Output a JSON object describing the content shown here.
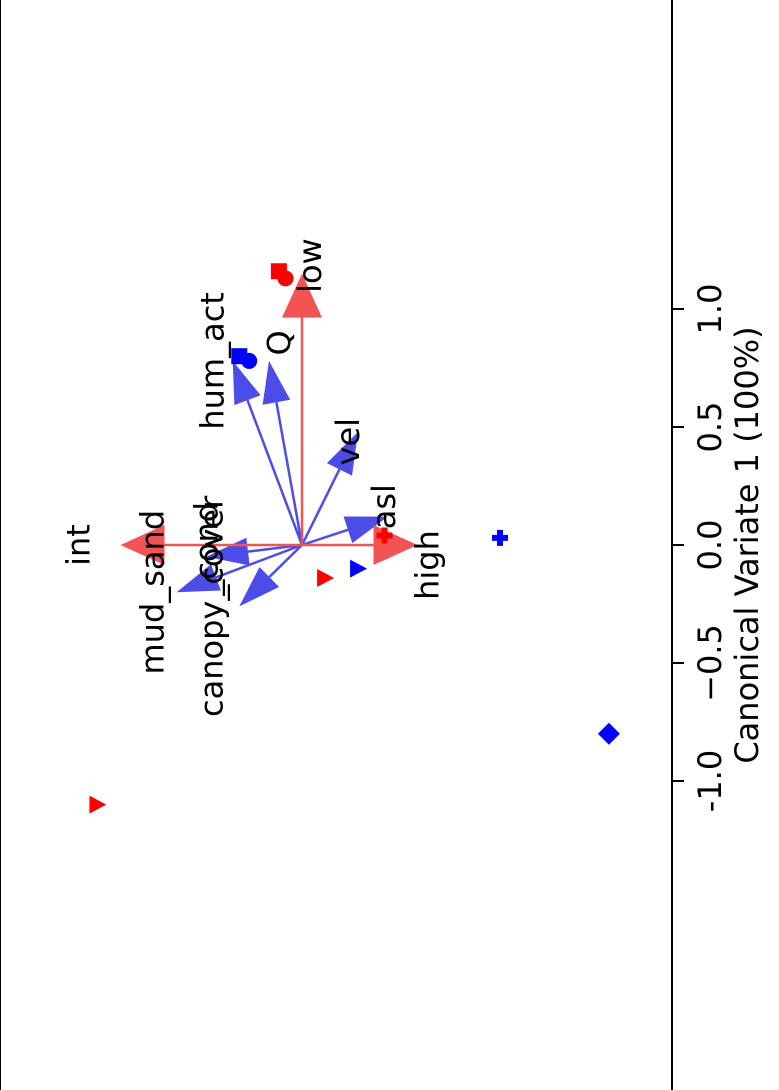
{
  "chart_data": {
    "type": "scatter",
    "title": "",
    "xlabel": "Canonical Variate 1 (100%)",
    "xlim": [
      -1.05,
      1.25
    ],
    "orientation": "rotated-90",
    "x_ticks": [
      {
        "value": -1.0,
        "label": "-1.0"
      },
      {
        "value": -0.5,
        "label": "−0.5"
      },
      {
        "value": 0.0,
        "label": "0.0"
      },
      {
        "value": 0.5,
        "label": "0.5"
      },
      {
        "value": 1.0,
        "label": "1.0"
      }
    ],
    "colors": {
      "red": "#ff0000",
      "blue": "#0000ff",
      "red_arrow": "#f25454",
      "blue_arrow": "#4c4ce8"
    },
    "class_arrows": [
      {
        "name": "low",
        "label": "low",
        "x": 1.15,
        "y": 0.0
      },
      {
        "name": "int",
        "label": "int",
        "x": 0.0,
        "y": 0.55
      },
      {
        "name": "high",
        "label": "high",
        "x": 0.0,
        "y": -0.35
      }
    ],
    "variable_arrows": [
      {
        "name": "hum_act",
        "label": "hum_act",
        "x": 0.78,
        "y": 0.21
      },
      {
        "name": "Q",
        "label": "Q",
        "x": 0.78,
        "y": 0.1
      },
      {
        "name": "vel",
        "label": "vel",
        "x": 0.48,
        "y": -0.17
      },
      {
        "name": "asl",
        "label": "asl",
        "x": 0.12,
        "y": -0.26
      },
      {
        "name": "canopy_cover",
        "label": "canopy_cover",
        "x": -0.26,
        "y": 0.19
      },
      {
        "name": "cond",
        "label": "_cond",
        "x": -0.05,
        "y": 0.29
      },
      {
        "name": "mud_sand",
        "label": "mud_sand",
        "x": -0.2,
        "y": 0.38
      }
    ],
    "points": [
      {
        "x": 1.16,
        "y": 0.07,
        "color": "red",
        "marker": "square"
      },
      {
        "x": 1.13,
        "y": 0.05,
        "color": "red",
        "marker": "circle"
      },
      {
        "x": 0.8,
        "y": 0.19,
        "color": "blue",
        "marker": "square"
      },
      {
        "x": 0.78,
        "y": 0.16,
        "color": "blue",
        "marker": "circle"
      },
      {
        "x": 0.04,
        "y": -0.25,
        "color": "red",
        "marker": "plus"
      },
      {
        "x": 0.03,
        "y": -0.6,
        "color": "blue",
        "marker": "plus"
      },
      {
        "x": -0.1,
        "y": -0.17,
        "color": "blue",
        "marker": "triangle"
      },
      {
        "x": -0.14,
        "y": -0.07,
        "color": "red",
        "marker": "triangle"
      },
      {
        "x": -0.8,
        "y": -0.93,
        "color": "blue",
        "marker": "diamond"
      },
      {
        "x": -1.1,
        "y": 0.62,
        "color": "red",
        "marker": "triangle"
      }
    ]
  }
}
